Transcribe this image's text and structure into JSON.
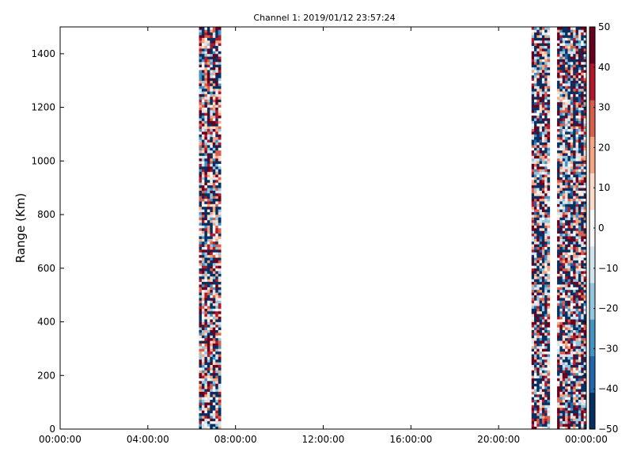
{
  "chart_data": {
    "type": "heatmap",
    "title": "Channel 1: 2019/01/12 23:57:24",
    "xlabel": "",
    "ylabel": "Range (Km)",
    "xlim": [
      "00:00:00",
      "24:00:00"
    ],
    "ylim": [
      0,
      1500
    ],
    "x_ticks": [
      "00:00:00",
      "04:00:00",
      "08:00:00",
      "12:00:00",
      "16:00:00",
      "20:00:00",
      "00:00:00"
    ],
    "y_ticks": [
      0,
      200,
      400,
      600,
      800,
      1000,
      1200,
      1400
    ],
    "colorbar": {
      "colormap": "RdBu_r",
      "range": [
        -50,
        50
      ],
      "ticks": [
        50,
        40,
        30,
        20,
        10,
        0,
        -10,
        -20,
        -30,
        -40,
        -50
      ],
      "colors": [
        "#053061",
        "#2166ac",
        "#4393c3",
        "#92c5de",
        "#d1e5f0",
        "#f7f7f7",
        "#fddbc7",
        "#f4a582",
        "#d6604d",
        "#b2182b",
        "#67001f"
      ]
    },
    "data_bands": [
      {
        "x_start": "06:20:00",
        "x_end": "07:20:00",
        "y_range": [
          0,
          1500
        ],
        "value_range": [
          -50,
          50
        ]
      },
      {
        "x_start": "21:30:00",
        "x_end": "22:20:00",
        "y_range": [
          0,
          1500
        ],
        "value_range": [
          -50,
          50
        ]
      },
      {
        "x_start": "22:40:00",
        "x_end": "24:00:00",
        "y_range": [
          0,
          1500
        ],
        "value_range": [
          -50,
          50
        ]
      }
    ],
    "grid": false
  }
}
